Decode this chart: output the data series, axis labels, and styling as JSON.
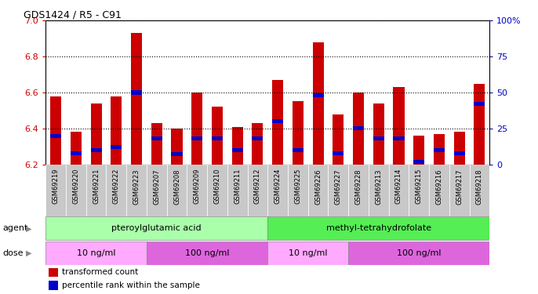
{
  "title": "GDS1424 / R5 - C91",
  "samples": [
    "GSM69219",
    "GSM69220",
    "GSM69221",
    "GSM69222",
    "GSM69223",
    "GSM69207",
    "GSM69208",
    "GSM69209",
    "GSM69210",
    "GSM69211",
    "GSM69212",
    "GSM69224",
    "GSM69225",
    "GSM69226",
    "GSM69227",
    "GSM69228",
    "GSM69213",
    "GSM69214",
    "GSM69215",
    "GSM69216",
    "GSM69217",
    "GSM69218"
  ],
  "transformed_count": [
    6.58,
    6.38,
    6.54,
    6.58,
    6.93,
    6.43,
    6.4,
    6.6,
    6.52,
    6.41,
    6.43,
    6.67,
    6.55,
    6.88,
    6.48,
    6.6,
    6.54,
    6.63,
    6.36,
    6.37,
    6.38,
    6.65
  ],
  "percentile_rank": [
    20,
    8,
    10,
    12,
    50,
    18,
    7,
    18,
    18,
    10,
    18,
    30,
    10,
    48,
    8,
    25,
    18,
    18,
    2,
    10,
    8,
    42
  ],
  "ylim_left": [
    6.2,
    7.0
  ],
  "ylim_right": [
    0,
    100
  ],
  "yticks_left": [
    6.2,
    6.4,
    6.6,
    6.8,
    7.0
  ],
  "yticks_right": [
    0,
    25,
    50,
    75,
    100
  ],
  "bar_color": "#cc0000",
  "percentile_color": "#0000cc",
  "agent_groups": [
    {
      "label": "pteroylglutamic acid",
      "start": 0,
      "end": 10,
      "color": "#aaffaa"
    },
    {
      "label": "methyl-tetrahydrofolate",
      "start": 11,
      "end": 21,
      "color": "#55ee55"
    }
  ],
  "dose_groups": [
    {
      "label": "10 ng/ml",
      "start": 0,
      "end": 4,
      "color": "#ffaaff"
    },
    {
      "label": "100 ng/ml",
      "start": 5,
      "end": 10,
      "color": "#dd66dd"
    },
    {
      "label": "10 ng/ml",
      "start": 11,
      "end": 14,
      "color": "#ffaaff"
    },
    {
      "label": "100 ng/ml",
      "start": 15,
      "end": 21,
      "color": "#dd66dd"
    }
  ],
  "left_axis_color": "#cc0000",
  "right_axis_color": "#0000cc",
  "bar_width": 0.55,
  "ybase": 6.2,
  "tick_bg_color": "#c8c8c8"
}
